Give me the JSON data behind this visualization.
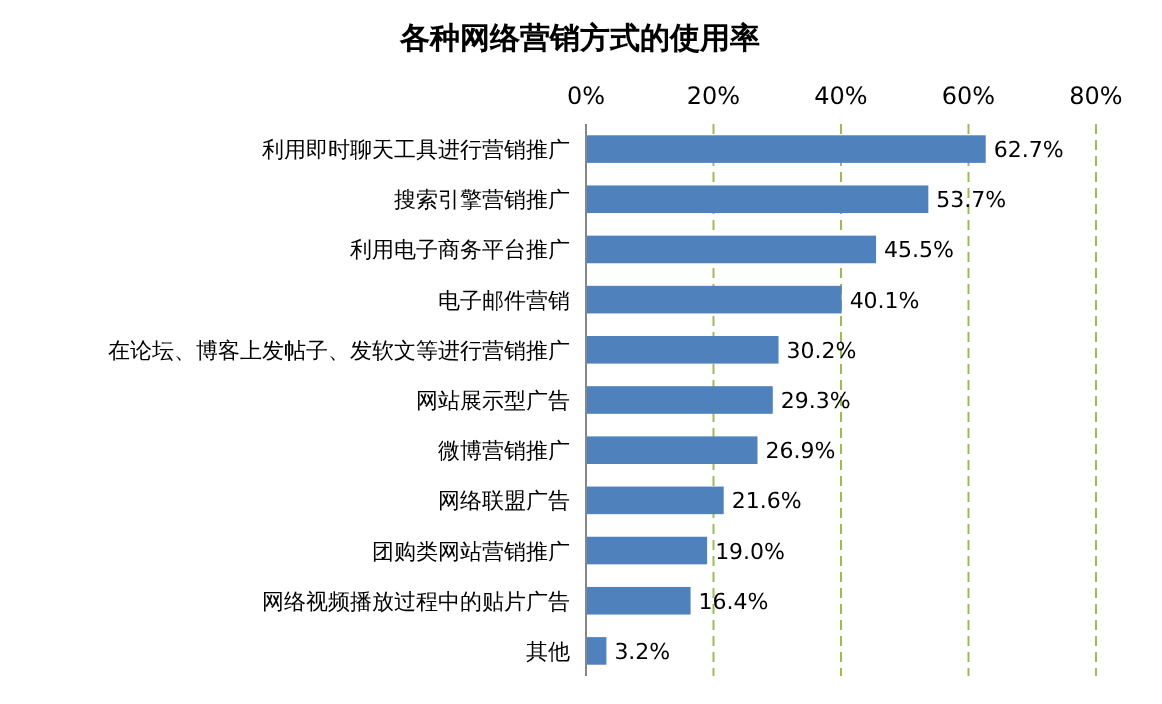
{
  "chart_data": {
    "type": "bar",
    "orientation": "horizontal",
    "title": "各种网络营销方式的使用率",
    "categories": [
      "利用即时聊天工具进行营销推广",
      "搜索引擎营销推广",
      "利用电子商务平台推广",
      "电子邮件营销",
      "在论坛、博客上发帖子、发软文等进行营销推广",
      "网站展示型广告",
      "微博营销推广",
      "网络联盟广告",
      "团购类网站营销推广",
      "网络视频播放过程中的贴片广告",
      "其他"
    ],
    "values": [
      62.7,
      53.7,
      45.5,
      40.1,
      30.2,
      29.3,
      26.9,
      21.6,
      19.0,
      16.4,
      3.2
    ],
    "value_labels": [
      "62.7%",
      "53.7%",
      "45.5%",
      "40.1%",
      "30.2%",
      "29.3%",
      "26.9%",
      "21.6%",
      "19.0%",
      "16.4%",
      "3.2%"
    ],
    "color": "#4f81bd",
    "xlim": [
      0,
      80
    ],
    "xticks": [
      {
        "value": 0,
        "label": "0%"
      },
      {
        "value": 20,
        "label": "20%"
      },
      {
        "value": 40,
        "label": "40%"
      },
      {
        "value": 60,
        "label": "60%"
      },
      {
        "value": 80,
        "label": "80%"
      }
    ],
    "grid": "x"
  }
}
